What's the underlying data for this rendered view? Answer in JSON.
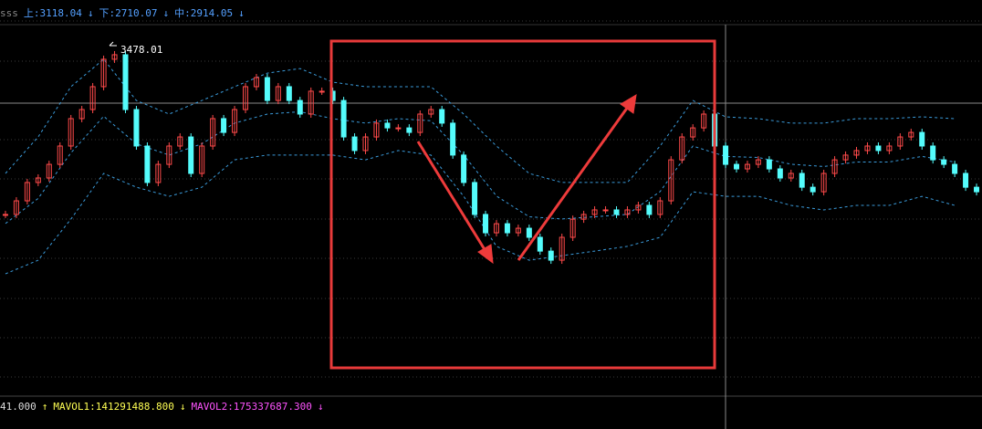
{
  "chart_data": {
    "type": "candlestick",
    "indicator_labels": [
      "sss",
      "上:3118.04",
      "↓",
      "下:2710.07",
      "↓",
      "中:2914.05",
      "↓"
    ],
    "volume_labels": [
      "41.000",
      "↑",
      "MAVOL1:141291488.800",
      "↓",
      "MAVOL2:175337687.300",
      "↓"
    ],
    "annotation": "3478.01",
    "xlim": [
      -0.5,
      89.5
    ],
    "ylim": [
      1720,
      3618
    ],
    "up_color": "#ff4a4a",
    "down_color": "#54fcfc",
    "series": [
      {
        "values": [
          2623,
          2692,
          2785,
          2808,
          2877,
          2970,
          3109,
          3155,
          3271,
          3410,
          3433,
          3155,
          2970,
          2785,
          2877,
          2970,
          3016,
          2831,
          2970,
          3109,
          3039,
          3155,
          3271,
          3317,
          3201,
          3271,
          3201,
          3132,
          3248,
          3248,
          3201,
          3016,
          2947,
          3016,
          3086,
          3062,
          3062,
          3039,
          3132,
          3155,
          3086,
          2924,
          2785,
          2623,
          2530,
          2576,
          2530,
          2553,
          2507,
          2437,
          2391,
          2507,
          2599,
          2623,
          2646,
          2646,
          2623,
          2646,
          2669,
          2623,
          2692,
          2900,
          3016,
          3062,
          3132,
          2970,
          2877,
          2854,
          2877,
          2900,
          2854,
          2808,
          2831,
          2761,
          2738,
          2831,
          2900,
          2924,
          2947,
          2970,
          2947,
          2970,
          3016,
          3039,
          2970,
          2900,
          2877,
          2831,
          2761,
          2738
        ]
      }
    ],
    "bands": [
      {
        "color": "#3a9ad9",
        "x": [
          0,
          3,
          6,
          9,
          12,
          15,
          18,
          21,
          24,
          27,
          30,
          33,
          36,
          39,
          42,
          45,
          48,
          51,
          54,
          57,
          60,
          63,
          66,
          69,
          72,
          75,
          78,
          81,
          84,
          87
        ],
        "values": [
          2831,
          3016,
          3271,
          3410,
          3201,
          3132,
          3201,
          3271,
          3340,
          3363,
          3294,
          3271,
          3271,
          3271,
          3132,
          2970,
          2831,
          2785,
          2785,
          2785,
          2970,
          3201,
          3118,
          3109,
          3086,
          3086,
          3109,
          3109,
          3118,
          3109
        ]
      },
      {
        "color": "#3a9ad9",
        "x": [
          0,
          3,
          6,
          9,
          12,
          15,
          18,
          21,
          24,
          27,
          30,
          33,
          36,
          39,
          42,
          45,
          48,
          51,
          54,
          57,
          60,
          63,
          66,
          69,
          72,
          75,
          78,
          81,
          84,
          87
        ],
        "values": [
          2577,
          2704,
          2935,
          3121,
          2981,
          2924,
          2981,
          3086,
          3132,
          3144,
          3109,
          3086,
          3109,
          3098,
          2924,
          2716,
          2611,
          2600,
          2611,
          2623,
          2739,
          2970,
          2917,
          2912,
          2878,
          2866,
          2889,
          2889,
          2917,
          2889
        ]
      },
      {
        "color": "#3a9ad9",
        "x": [
          0,
          3,
          6,
          9,
          12,
          15,
          18,
          21,
          24,
          27,
          30,
          33,
          36,
          39,
          42,
          45,
          48,
          51,
          54,
          57,
          60,
          63,
          66,
          69,
          72,
          75,
          78,
          81,
          84,
          87
        ],
        "values": [
          2322,
          2391,
          2599,
          2831,
          2761,
          2715,
          2761,
          2900,
          2924,
          2924,
          2924,
          2900,
          2947,
          2924,
          2715,
          2461,
          2391,
          2414,
          2437,
          2461,
          2507,
          2738,
          2715,
          2715,
          2669,
          2646,
          2669,
          2669,
          2715,
          2669
        ]
      }
    ]
  }
}
